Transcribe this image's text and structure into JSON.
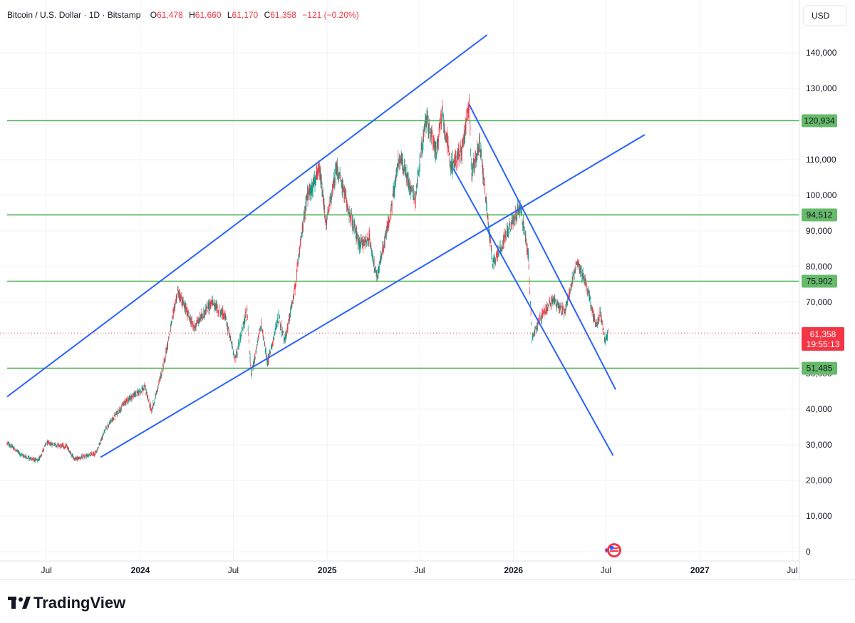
{
  "header": {
    "symbol": "Bitcoin / U.S. Dollar · 1D · Bitstamp",
    "o_label": "O",
    "o_value": "61,478",
    "h_label": "H",
    "h_value": "61,660",
    "l_label": "L",
    "l_value": "61,170",
    "c_label": "C",
    "c_value": "61,358",
    "change": "−121 (−0.20%)",
    "down_color": "#f23645"
  },
  "currency_button": "USD",
  "brand": {
    "name": "TradingView"
  },
  "chart_data": {
    "type": "candlestick",
    "ylim": [
      0,
      150000
    ],
    "y_ticks": [
      0,
      10000,
      20000,
      30000,
      40000,
      50000,
      60000,
      70000,
      80000,
      90000,
      100000,
      110000,
      120000,
      130000,
      140000
    ],
    "y_tick_labels": [
      "0",
      "10,000",
      "20,000",
      "30,000",
      "40,000",
      "50,000",
      "60,000",
      "70,000",
      "80,000",
      "90,000",
      "100,000",
      "110,000",
      "120,000",
      "130,000",
      "140,000"
    ],
    "x_range": [
      "2023-04-15",
      "2027-07-15"
    ],
    "x_ticks": [
      {
        "date": "2023-07-01",
        "label": "Jul",
        "year": false
      },
      {
        "date": "2024-01-01",
        "label": "2024",
        "year": true
      },
      {
        "date": "2024-07-01",
        "label": "Jul",
        "year": false
      },
      {
        "date": "2025-01-01",
        "label": "2025",
        "year": true
      },
      {
        "date": "2025-07-01",
        "label": "Jul",
        "year": false
      },
      {
        "date": "2026-01-01",
        "label": "2026",
        "year": true
      },
      {
        "date": "2026-07-01",
        "label": "Jul",
        "year": false
      },
      {
        "date": "2027-01-01",
        "label": "2027",
        "year": true
      },
      {
        "date": "2027-07-01",
        "label": "Jul",
        "year": false
      }
    ],
    "price_path": [
      [
        "2023-04-15",
        30500
      ],
      [
        "2023-05-15",
        27000
      ],
      [
        "2023-06-15",
        25500
      ],
      [
        "2023-07-01",
        30500
      ],
      [
        "2023-08-10",
        29500
      ],
      [
        "2023-08-25",
        26000
      ],
      [
        "2023-10-05",
        27500
      ],
      [
        "2023-10-25",
        34500
      ],
      [
        "2023-12-05",
        42500
      ],
      [
        "2024-01-10",
        46000
      ],
      [
        "2024-01-23",
        39500
      ],
      [
        "2024-02-15",
        52000
      ],
      [
        "2024-03-14",
        73000
      ],
      [
        "2024-04-15",
        63000
      ],
      [
        "2024-05-20",
        70000
      ],
      [
        "2024-06-15",
        66000
      ],
      [
        "2024-07-05",
        54000
      ],
      [
        "2024-07-28",
        68000
      ],
      [
        "2024-08-05",
        49500
      ],
      [
        "2024-08-25",
        64000
      ],
      [
        "2024-09-06",
        53000
      ],
      [
        "2024-09-28",
        66000
      ],
      [
        "2024-10-10",
        59000
      ],
      [
        "2024-10-29",
        73000
      ],
      [
        "2024-11-13",
        90000
      ],
      [
        "2024-11-22",
        99500
      ],
      [
        "2024-12-05",
        103000
      ],
      [
        "2024-12-17",
        107000
      ],
      [
        "2024-12-30",
        92000
      ],
      [
        "2025-01-20",
        108000
      ],
      [
        "2025-02-10",
        97000
      ],
      [
        "2025-03-05",
        86000
      ],
      [
        "2025-03-25",
        88000
      ],
      [
        "2025-04-08",
        76500
      ],
      [
        "2025-05-05",
        95000
      ],
      [
        "2025-05-22",
        111000
      ],
      [
        "2025-06-22",
        99000
      ],
      [
        "2025-07-14",
        122000
      ],
      [
        "2025-08-03",
        112000
      ],
      [
        "2025-08-14",
        123500
      ],
      [
        "2025-09-01",
        108000
      ],
      [
        "2025-09-22",
        113000
      ],
      [
        "2025-10-06",
        125500
      ],
      [
        "2025-10-11",
        106000
      ],
      [
        "2025-10-27",
        115000
      ],
      [
        "2025-11-21",
        81000
      ],
      [
        "2025-12-15",
        88000
      ],
      [
        "2026-01-14",
        97000
      ],
      [
        "2026-01-30",
        83000
      ],
      [
        "2026-02-06",
        60000
      ],
      [
        "2026-02-25",
        66000
      ],
      [
        "2026-03-20",
        71000
      ],
      [
        "2026-04-10",
        67000
      ],
      [
        "2026-05-05",
        81000
      ],
      [
        "2026-05-22",
        76000
      ],
      [
        "2026-06-02",
        69000
      ],
      [
        "2026-06-12",
        63000
      ],
      [
        "2026-06-20",
        67000
      ],
      [
        "2026-06-30",
        59000
      ],
      [
        "2026-07-05",
        61358
      ]
    ],
    "horizontal_levels": [
      {
        "value": 120934,
        "label": "120,934"
      },
      {
        "value": 94512,
        "label": "94,512"
      },
      {
        "value": 75902,
        "label": "75,902"
      },
      {
        "value": 51485,
        "label": "51,485"
      }
    ],
    "last_price": {
      "value": 61358,
      "label": "61,358",
      "countdown": "19:55:13"
    },
    "trend_lines": [
      {
        "from": [
          "2023-04-15",
          43500
        ],
        "to": [
          "2025-11-10",
          145000
        ]
      },
      {
        "from": [
          "2023-10-15",
          26500
        ],
        "to": [
          "2026-09-15",
          117000
        ]
      },
      {
        "from": [
          "2025-10-06",
          125500
        ],
        "to": [
          "2026-07-20",
          45500
        ]
      },
      {
        "from": [
          "2025-09-05",
          107500
        ],
        "to": [
          "2026-07-15",
          27000
        ]
      }
    ],
    "colors": {
      "up": "#089981",
      "down": "#f23645",
      "level": "#4caf50",
      "level_label_bg": "#66bb6a",
      "trend": "#2962ff",
      "grid": "#f0f3fa"
    }
  }
}
